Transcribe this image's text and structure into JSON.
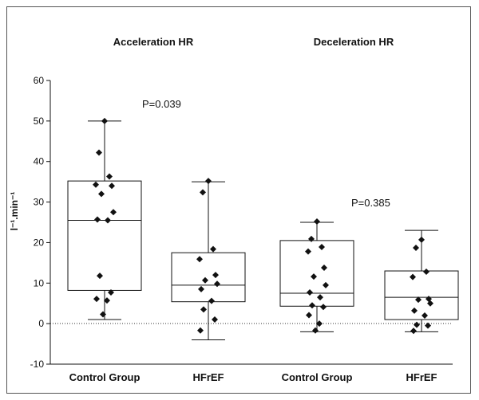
{
  "chart_data": {
    "type": "box",
    "titles": [
      "Acceleration HR",
      "Deceleration HR"
    ],
    "ylabel": "l⁻¹.min⁻¹",
    "ylim": [
      -10,
      60
    ],
    "yticks": [
      -10,
      0,
      10,
      20,
      30,
      40,
      50,
      60
    ],
    "categories": [
      "Control Group",
      "HFrEF",
      "Control Group",
      "HFrEF"
    ],
    "annotations": [
      "P=0.039",
      "P=0.385"
    ],
    "reference_line": 0,
    "groups": [
      {
        "category": "Control Group",
        "panel": "Acceleration HR",
        "whisker_low": 1,
        "q1": 8.2,
        "median": 25.5,
        "q3": 35.2,
        "whisker_high": 50,
        "points": [
          50,
          42.2,
          36.3,
          34.3,
          34.0,
          32.0,
          27.5,
          25.7,
          25.5,
          11.8,
          7.7,
          6.1,
          5.7,
          2.3
        ]
      },
      {
        "category": "HFrEF",
        "panel": "Acceleration HR",
        "whisker_low": -4,
        "q1": 5.4,
        "median": 9.5,
        "q3": 17.5,
        "whisker_high": 35,
        "points": [
          35.2,
          32.4,
          18.4,
          15.9,
          12.0,
          10.7,
          9.8,
          8.5,
          5.6,
          3.5,
          1.0,
          -1.7
        ]
      },
      {
        "category": "Control Group",
        "panel": "Deceleration HR",
        "whisker_low": -2,
        "q1": 4.3,
        "median": 7.5,
        "q3": 20.5,
        "whisker_high": 25,
        "points": [
          25.2,
          20.9,
          18.9,
          17.8,
          13.8,
          11.6,
          9.5,
          7.7,
          6.5,
          4.5,
          4.1,
          2.1,
          0.0,
          -1.7
        ]
      },
      {
        "category": "HFrEF",
        "panel": "Deceleration HR",
        "whisker_low": -2,
        "q1": 1,
        "median": 6.5,
        "q3": 13,
        "whisker_high": 23,
        "points": [
          20.7,
          18.7,
          12.8,
          11.5,
          6.1,
          5.9,
          5.0,
          3.2,
          2.0,
          -0.3,
          -0.5,
          -1.8
        ]
      }
    ]
  }
}
